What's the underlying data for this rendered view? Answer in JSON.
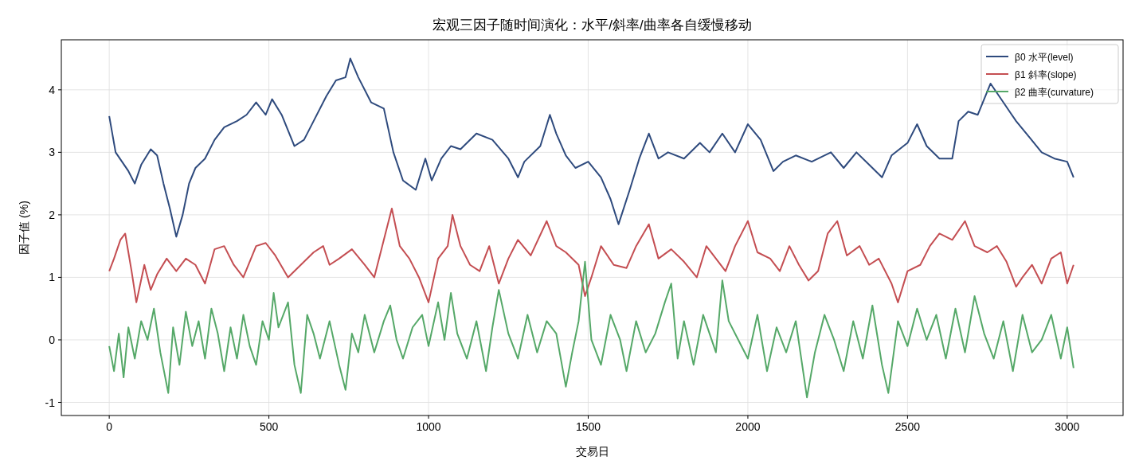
{
  "chart_data": {
    "type": "line",
    "title": "宏观三因子随时间演化：水平/斜率/曲率各自缓慢移动",
    "xlabel": "交易日",
    "ylabel": "因子值 (%)",
    "xlim": [
      -150,
      3175
    ],
    "ylim": [
      -1.21,
      4.8
    ],
    "xticks": [
      0,
      500,
      1000,
      1500,
      2000,
      2500,
      3000
    ],
    "yticks": [
      -1,
      0,
      1,
      2,
      3,
      4
    ],
    "grid": true,
    "legend": "top right",
    "series": [
      {
        "name": "β0 水平(level)",
        "color": "#2e4a7d",
        "x": [
          0,
          20,
          40,
          60,
          80,
          100,
          130,
          150,
          170,
          190,
          210,
          230,
          250,
          270,
          300,
          330,
          360,
          400,
          430,
          460,
          490,
          510,
          540,
          580,
          610,
          640,
          680,
          710,
          740,
          755,
          780,
          820,
          860,
          890,
          920,
          960,
          990,
          1010,
          1040,
          1070,
          1100,
          1150,
          1200,
          1250,
          1280,
          1300,
          1350,
          1380,
          1400,
          1430,
          1460,
          1500,
          1540,
          1570,
          1595,
          1630,
          1660,
          1690,
          1720,
          1750,
          1800,
          1850,
          1880,
          1920,
          1960,
          2000,
          2040,
          2080,
          2110,
          2150,
          2200,
          2260,
          2300,
          2340,
          2380,
          2420,
          2450,
          2500,
          2530,
          2560,
          2600,
          2640,
          2660,
          2690,
          2720,
          2760,
          2800,
          2840,
          2880,
          2920,
          2960,
          3000,
          3020
        ],
        "values": [
          3.58,
          3.0,
          2.85,
          2.7,
          2.5,
          2.8,
          3.05,
          2.95,
          2.5,
          2.1,
          1.65,
          2.0,
          2.5,
          2.75,
          2.9,
          3.2,
          3.4,
          3.5,
          3.6,
          3.8,
          3.6,
          3.85,
          3.6,
          3.1,
          3.2,
          3.5,
          3.9,
          4.15,
          4.2,
          4.5,
          4.2,
          3.8,
          3.7,
          3.0,
          2.55,
          2.4,
          2.9,
          2.55,
          2.9,
          3.1,
          3.05,
          3.3,
          3.2,
          2.9,
          2.6,
          2.85,
          3.1,
          3.6,
          3.3,
          2.95,
          2.75,
          2.85,
          2.6,
          2.25,
          1.85,
          2.4,
          2.9,
          3.3,
          2.9,
          3.0,
          2.9,
          3.15,
          3.0,
          3.3,
          3.0,
          3.45,
          3.2,
          2.7,
          2.85,
          2.95,
          2.85,
          3.0,
          2.75,
          3.0,
          2.8,
          2.6,
          2.95,
          3.15,
          3.45,
          3.1,
          2.9,
          2.9,
          3.5,
          3.65,
          3.6,
          4.1,
          3.8,
          3.5,
          3.25,
          3.0,
          2.9,
          2.85,
          2.6
        ]
      },
      {
        "name": "β1 斜率(slope)",
        "color": "#c44e52",
        "x": [
          0,
          15,
          35,
          50,
          70,
          85,
          110,
          130,
          150,
          180,
          210,
          240,
          270,
          300,
          330,
          360,
          390,
          420,
          460,
          490,
          520,
          560,
          600,
          640,
          670,
          690,
          720,
          760,
          800,
          830,
          870,
          885,
          910,
          940,
          970,
          1000,
          1030,
          1060,
          1075,
          1100,
          1130,
          1160,
          1190,
          1220,
          1250,
          1280,
          1320,
          1370,
          1400,
          1430,
          1470,
          1490,
          1510,
          1540,
          1580,
          1620,
          1650,
          1690,
          1720,
          1760,
          1800,
          1840,
          1870,
          1900,
          1930,
          1960,
          2000,
          2030,
          2070,
          2100,
          2130,
          2160,
          2190,
          2220,
          2250,
          2280,
          2310,
          2350,
          2380,
          2410,
          2450,
          2470,
          2500,
          2540,
          2570,
          2600,
          2640,
          2680,
          2710,
          2750,
          2780,
          2810,
          2840,
          2860,
          2890,
          2920,
          2950,
          2980,
          3000,
          3020
        ],
        "values": [
          1.1,
          1.3,
          1.6,
          1.7,
          1.1,
          0.6,
          1.2,
          0.8,
          1.05,
          1.3,
          1.1,
          1.3,
          1.2,
          0.9,
          1.45,
          1.5,
          1.2,
          1.0,
          1.5,
          1.55,
          1.35,
          1.0,
          1.2,
          1.4,
          1.5,
          1.2,
          1.3,
          1.45,
          1.2,
          1.0,
          1.8,
          2.1,
          1.5,
          1.3,
          1.0,
          0.6,
          1.3,
          1.5,
          2.0,
          1.5,
          1.2,
          1.1,
          1.5,
          0.9,
          1.3,
          1.6,
          1.35,
          1.9,
          1.5,
          1.4,
          1.2,
          0.7,
          1.0,
          1.5,
          1.2,
          1.15,
          1.5,
          1.85,
          1.3,
          1.45,
          1.25,
          1.0,
          1.5,
          1.3,
          1.1,
          1.5,
          1.9,
          1.4,
          1.3,
          1.1,
          1.5,
          1.2,
          0.95,
          1.1,
          1.7,
          1.9,
          1.35,
          1.5,
          1.2,
          1.3,
          0.9,
          0.6,
          1.1,
          1.2,
          1.5,
          1.7,
          1.6,
          1.9,
          1.5,
          1.4,
          1.5,
          1.25,
          0.85,
          1.0,
          1.2,
          0.9,
          1.3,
          1.4,
          0.9,
          1.2
        ]
      },
      {
        "name": "β2 曲率(curvature)",
        "color": "#55a868",
        "x": [
          0,
          15,
          30,
          45,
          60,
          80,
          100,
          120,
          140,
          160,
          185,
          200,
          220,
          240,
          260,
          280,
          300,
          320,
          340,
          360,
          380,
          400,
          420,
          440,
          460,
          480,
          500,
          515,
          530,
          560,
          580,
          600,
          620,
          640,
          660,
          690,
          720,
          740,
          760,
          780,
          800,
          830,
          860,
          880,
          900,
          920,
          950,
          980,
          1000,
          1030,
          1050,
          1070,
          1090,
          1120,
          1150,
          1180,
          1200,
          1220,
          1250,
          1280,
          1310,
          1340,
          1370,
          1400,
          1430,
          1450,
          1470,
          1490,
          1510,
          1540,
          1570,
          1600,
          1620,
          1650,
          1680,
          1710,
          1740,
          1760,
          1780,
          1800,
          1830,
          1860,
          1900,
          1920,
          1940,
          1970,
          2000,
          2030,
          2060,
          2090,
          2120,
          2150,
          2185,
          2210,
          2240,
          2270,
          2300,
          2330,
          2360,
          2390,
          2420,
          2440,
          2470,
          2500,
          2530,
          2560,
          2590,
          2620,
          2650,
          2680,
          2710,
          2740,
          2770,
          2800,
          2830,
          2860,
          2890,
          2920,
          2950,
          2980,
          3000,
          3020
        ],
        "values": [
          -0.1,
          -0.5,
          0.1,
          -0.6,
          0.2,
          -0.3,
          0.3,
          0.0,
          0.5,
          -0.2,
          -0.85,
          0.2,
          -0.4,
          0.45,
          -0.1,
          0.3,
          -0.3,
          0.5,
          0.1,
          -0.5,
          0.2,
          -0.3,
          0.4,
          -0.1,
          -0.4,
          0.3,
          0.0,
          0.75,
          0.2,
          0.6,
          -0.4,
          -0.85,
          0.4,
          0.1,
          -0.3,
          0.3,
          -0.4,
          -0.8,
          0.1,
          -0.2,
          0.4,
          -0.2,
          0.3,
          0.55,
          0.0,
          -0.3,
          0.2,
          0.4,
          -0.1,
          0.6,
          0.0,
          0.75,
          0.1,
          -0.3,
          0.3,
          -0.5,
          0.2,
          0.8,
          0.1,
          -0.3,
          0.4,
          -0.2,
          0.3,
          0.1,
          -0.75,
          -0.2,
          0.3,
          1.25,
          0.0,
          -0.4,
          0.4,
          0.0,
          -0.5,
          0.3,
          -0.2,
          0.1,
          0.6,
          0.9,
          -0.3,
          0.3,
          -0.4,
          0.4,
          -0.2,
          0.95,
          0.3,
          0.0,
          -0.3,
          0.4,
          -0.5,
          0.2,
          -0.2,
          0.3,
          -0.92,
          -0.2,
          0.4,
          0.0,
          -0.5,
          0.3,
          -0.3,
          0.55,
          -0.4,
          -0.85,
          0.3,
          -0.1,
          0.5,
          0.0,
          0.4,
          -0.3,
          0.5,
          -0.2,
          0.7,
          0.1,
          -0.3,
          0.3,
          -0.5,
          0.4,
          -0.2,
          0.0,
          0.4,
          -0.3,
          0.2,
          -0.45
        ]
      }
    ]
  }
}
